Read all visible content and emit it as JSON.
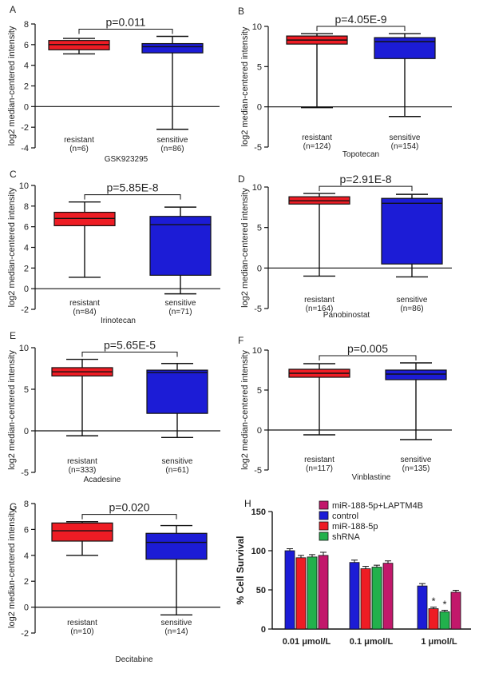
{
  "figure": {
    "colors": {
      "resistant": "#ee1c24",
      "sensitive": "#1c1cd6",
      "axis": "#111111",
      "bar_blue": "#1c1cd6",
      "bar_red": "#ee1c24",
      "bar_green": "#22b14c",
      "bar_magenta": "#c2186b"
    }
  },
  "chart_data": [
    {
      "type": "box",
      "panel": "A",
      "ylabel": "log2 median-centered intensity",
      "drug": "GSK923295",
      "pvalue": "p=0.011",
      "ylim": [
        -4,
        8
      ],
      "yticks": [
        -4,
        -2,
        0,
        2,
        4,
        6,
        8
      ],
      "groups": [
        {
          "label": "resistant",
          "n": "(n=6)",
          "min": 5.1,
          "q1": 5.5,
          "median": 6.0,
          "q3": 6.4,
          "max": 6.6,
          "color": "#ee1c24"
        },
        {
          "label": "sensitive",
          "n": "(n=86)",
          "min": -2.2,
          "q1": 5.2,
          "median": 5.8,
          "q3": 6.1,
          "max": 6.8,
          "color": "#1c1cd6"
        }
      ]
    },
    {
      "type": "box",
      "panel": "B",
      "ylabel": "log2 median-centered intensity",
      "drug": "Topotecan",
      "pvalue": "p=4.05E-9",
      "ylim": [
        -5,
        10
      ],
      "yticks": [
        -5,
        0,
        5,
        10
      ],
      "groups": [
        {
          "label": "resistant",
          "n": "(n=124)",
          "min": -0.1,
          "q1": 7.8,
          "median": 8.3,
          "q3": 8.8,
          "max": 9.1,
          "color": "#ee1c24"
        },
        {
          "label": "sensitive",
          "n": "(n=154)",
          "min": -1.2,
          "q1": 6.0,
          "median": 8.1,
          "q3": 8.6,
          "max": 9.1,
          "color": "#1c1cd6"
        }
      ]
    },
    {
      "type": "box",
      "panel": "C",
      "ylabel": "log2 median-centered intensity",
      "drug": "Irinotecan",
      "pvalue": "p=5.85E-8",
      "ylim": [
        -2,
        10
      ],
      "yticks": [
        -2,
        0,
        2,
        4,
        6,
        8,
        10
      ],
      "groups": [
        {
          "label": "resistant",
          "n": "(n=84)",
          "min": 1.1,
          "q1": 6.1,
          "median": 6.8,
          "q3": 7.4,
          "max": 8.4,
          "color": "#ee1c24"
        },
        {
          "label": "sensitive",
          "n": "(n=71)",
          "min": -0.5,
          "q1": 1.3,
          "median": 6.2,
          "q3": 7.0,
          "max": 7.9,
          "color": "#1c1cd6"
        }
      ]
    },
    {
      "type": "box",
      "panel": "D",
      "ylabel": "log2 median-centered intensity",
      "drug": "Panobinostat",
      "pvalue": "p=2.91E-8",
      "ylim": [
        -5,
        10
      ],
      "yticks": [
        -5,
        0,
        5,
        10
      ],
      "groups": [
        {
          "label": "resistant",
          "n": "(n=164)",
          "min": -1.0,
          "q1": 7.9,
          "median": 8.3,
          "q3": 8.8,
          "max": 9.2,
          "color": "#ee1c24"
        },
        {
          "label": "sensitive",
          "n": "(n=86)",
          "min": -1.1,
          "q1": 0.5,
          "median": 8.0,
          "q3": 8.6,
          "max": 9.1,
          "color": "#1c1cd6"
        }
      ]
    },
    {
      "type": "box",
      "panel": "E",
      "ylabel": "log2 median-centered intensity",
      "drug": "Acadesine",
      "pvalue": "p=5.65E-5",
      "ylim": [
        -5,
        10
      ],
      "yticks": [
        -5,
        0,
        5,
        10
      ],
      "groups": [
        {
          "label": "resistant",
          "n": "(n=333)",
          "min": -0.6,
          "q1": 6.6,
          "median": 7.1,
          "q3": 7.6,
          "max": 8.6,
          "color": "#ee1c24"
        },
        {
          "label": "sensitive",
          "n": "(n=61)",
          "min": -0.8,
          "q1": 2.1,
          "median": 7.0,
          "q3": 7.3,
          "max": 8.1,
          "color": "#1c1cd6"
        }
      ]
    },
    {
      "type": "box",
      "panel": "F",
      "ylabel": "log2 median-centered intensity",
      "drug": "Vinblastine",
      "pvalue": "p=0.005",
      "ylim": [
        -5,
        10
      ],
      "yticks": [
        -5,
        0,
        5,
        10
      ],
      "groups": [
        {
          "label": "resistant",
          "n": "(n=117)",
          "min": -0.6,
          "q1": 6.6,
          "median": 7.1,
          "q3": 7.6,
          "max": 8.3,
          "color": "#ee1c24"
        },
        {
          "label": "sensitive",
          "n": "(n=135)",
          "min": -1.2,
          "q1": 6.3,
          "median": 7.0,
          "q3": 7.5,
          "max": 8.4,
          "color": "#1c1cd6"
        }
      ]
    },
    {
      "type": "box",
      "panel": "G",
      "ylabel": "log2 median-centered intensity",
      "drug": "Decitabine",
      "pvalue": "p=0.020",
      "ylim": [
        -2,
        8
      ],
      "yticks": [
        -2,
        0,
        2,
        4,
        6,
        8
      ],
      "groups": [
        {
          "label": "resistant",
          "n": "(n=10)",
          "min": 4.0,
          "q1": 5.1,
          "median": 5.9,
          "q3": 6.5,
          "max": 6.6,
          "color": "#ee1c24"
        },
        {
          "label": "sensitive",
          "n": "(n=14)",
          "min": -0.6,
          "q1": 3.7,
          "median": 5.0,
          "q3": 5.7,
          "max": 6.3,
          "color": "#1c1cd6"
        }
      ]
    },
    {
      "type": "bar",
      "panel": "H",
      "ylabel": "% Cell Survival",
      "ylim": [
        0,
        150
      ],
      "yticks": [
        0,
        50,
        100,
        150
      ],
      "categories": [
        "0.01 μmol/L",
        "0.1 μmol/L",
        "1 μmol/L"
      ],
      "series": [
        {
          "name": "control",
          "color": "#1c1cd6",
          "values": [
            100,
            85,
            55
          ],
          "errors": [
            2.5,
            3,
            3
          ],
          "stars": [
            "",
            "",
            ""
          ]
        },
        {
          "name": "miR-188-5p",
          "color": "#ee1c24",
          "values": [
            91,
            77,
            26
          ],
          "errors": [
            3,
            3,
            2
          ],
          "stars": [
            "",
            "",
            "*"
          ]
        },
        {
          "name": "shRNA",
          "color": "#22b14c",
          "values": [
            92,
            79,
            22
          ],
          "errors": [
            3,
            2.5,
            2
          ],
          "stars": [
            "",
            "",
            "*"
          ]
        },
        {
          "name": "miR-188-5p+LAPTM4B",
          "color": "#c2186b",
          "values": [
            94,
            84,
            47
          ],
          "errors": [
            4,
            3,
            2.5
          ],
          "stars": [
            "",
            "",
            ""
          ]
        }
      ],
      "legend_order": [
        "miR-188-5p+LAPTM4B",
        "control",
        "miR-188-5p",
        "shRNA"
      ],
      "legend": "top-right"
    }
  ]
}
